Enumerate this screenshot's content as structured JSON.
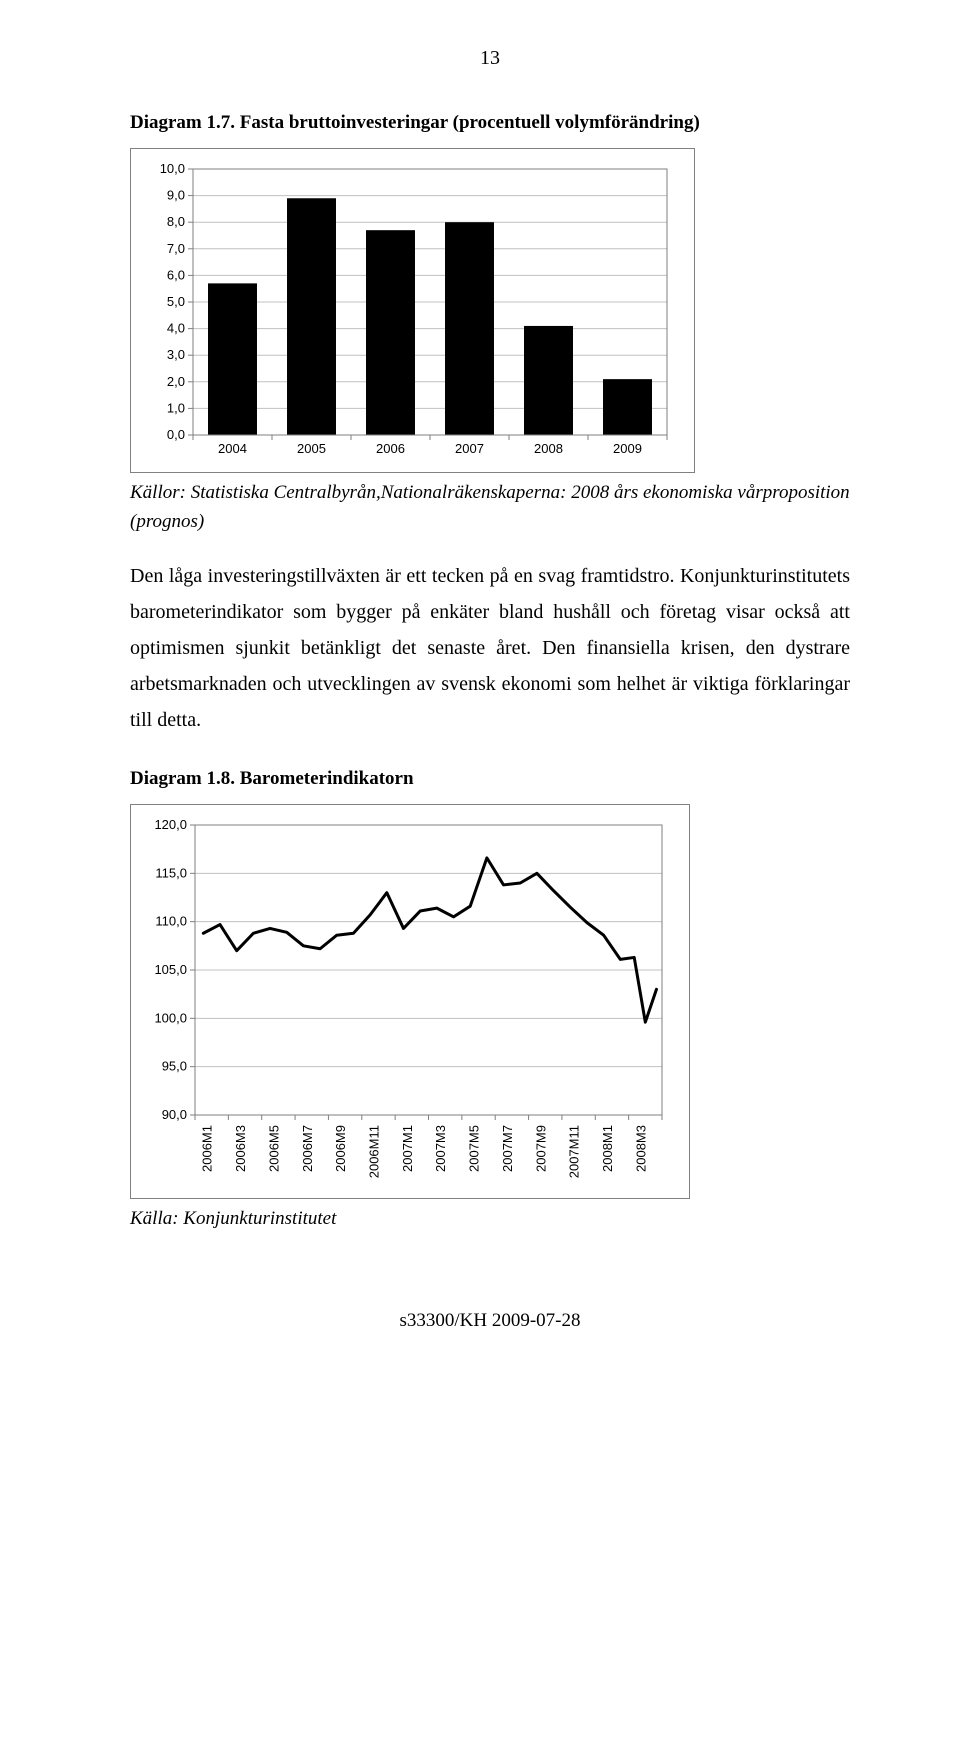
{
  "page_number": "13",
  "figure1": {
    "title": "Diagram 1.7. Fasta bruttoinvesteringar (procentuell volymförändring)",
    "type": "bar",
    "categories": [
      "2004",
      "2005",
      "2006",
      "2007",
      "2008",
      "2009"
    ],
    "values": [
      5.7,
      8.9,
      7.7,
      8.0,
      4.1,
      2.1
    ],
    "ylim": [
      0.0,
      10.0
    ],
    "ytick_step": 1.0,
    "ytick_labels": [
      "0,0",
      "1,0",
      "2,0",
      "3,0",
      "4,0",
      "5,0",
      "6,0",
      "7,0",
      "8,0",
      "9,0",
      "10,0"
    ],
    "bar_color": "#000000",
    "background_color": "#ffffff",
    "axis_color": "#7f7f7f",
    "grid_color": "#c0c0c0",
    "fontsize": 13,
    "bar_width_ratio": 0.62
  },
  "figure1_sources": "Källor: Statistiska Centralbyrån,Nationalräkenskaperna: 2008 års ekonomiska vårproposition (prognos)",
  "body_text": "Den låga investeringstillväxten är ett tecken på en svag framtidstro. Konjunkturinstitutets barometerindikator som bygger på enkäter bland hushåll och företag visar också att optimismen sjunkit betänkligt det senaste året. Den finansiella krisen, den dystrare arbetsmarknaden och utvecklingen av svensk ekonomi som helhet är viktiga förklaringar till detta.",
  "figure2": {
    "title": "Diagram 1.8. Barometerindikatorn",
    "type": "line",
    "xlabels": [
      "2006M1",
      "2006M3",
      "2006M5",
      "2006M7",
      "2006M9",
      "2006M11",
      "2007M1",
      "2007M3",
      "2007M5",
      "2007M7",
      "2007M9",
      "2007M11",
      "2008M1",
      "2008M3"
    ],
    "values_y": [
      108.8,
      109.7,
      107.0,
      108.8,
      109.3,
      108.9,
      107.5,
      107.2,
      108.6,
      108.8,
      110.7,
      113.0,
      109.3,
      111.1,
      111.4,
      110.5,
      111.6,
      116.6,
      113.8,
      114.0,
      115.0,
      113.2,
      111.5,
      109.9,
      108.6,
      106.1,
      106.3,
      99.6,
      103.0
    ],
    "ylim": [
      90.0,
      120.0
    ],
    "ytick_step": 5.0,
    "ytick_labels": [
      "90,0",
      "95,0",
      "100,0",
      "105,0",
      "110,0",
      "115,0",
      "120,0"
    ],
    "line_color": "#000000",
    "line_width": 3.0,
    "background_color": "#ffffff",
    "axis_color": "#7f7f7f",
    "grid_color": "#c0c0c0",
    "fontsize": 13
  },
  "figure2_sources": "Källa: Konjunkturinstitutet",
  "footer": "s33300/KH 2009-07-28"
}
